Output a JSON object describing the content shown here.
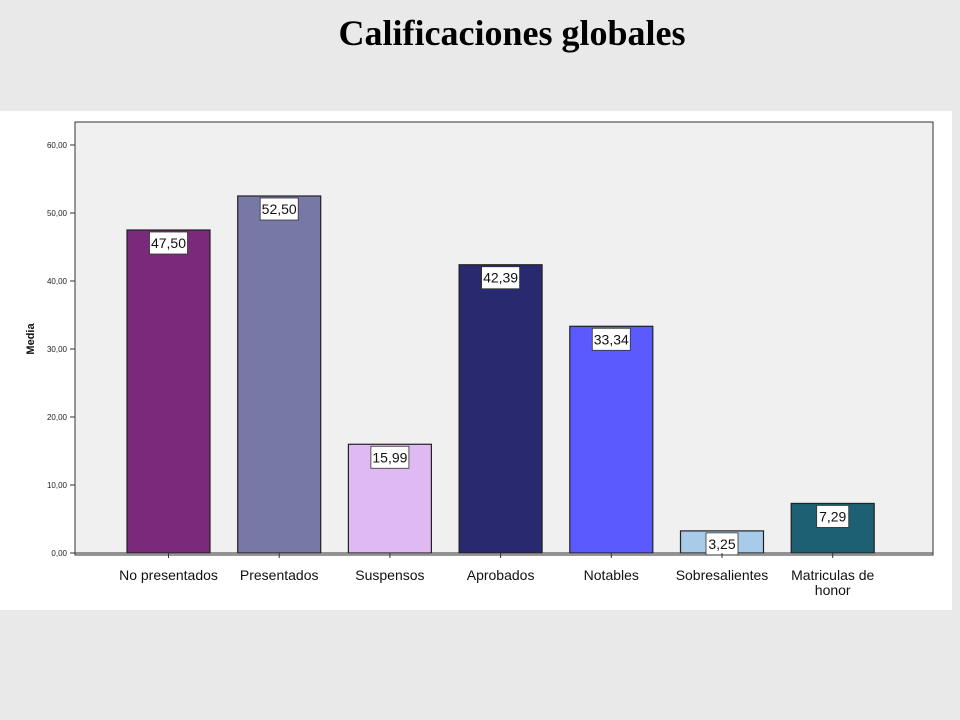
{
  "chart_data": {
    "type": "bar",
    "title": "Calificaciones globales",
    "ylabel": "Media",
    "xlabel": "",
    "ylim": [
      0,
      60
    ],
    "yticks": [
      "0,00",
      "10,00",
      "20,00",
      "30,00",
      "40,00",
      "50,00",
      "60,00"
    ],
    "ytick_values": [
      0,
      10,
      20,
      30,
      40,
      50,
      60
    ],
    "categories": [
      "No presentados",
      "Presentados",
      "Suspensos",
      "Aprobados",
      "Notables",
      "Sobresalientes",
      "Matriculas de honor"
    ],
    "values": [
      47.5,
      52.5,
      15.99,
      42.39,
      33.34,
      3.25,
      7.29
    ],
    "value_labels": [
      "47,50",
      "52,50",
      "15,99",
      "42,39",
      "33,34",
      "3,25",
      "7,29"
    ],
    "colors": [
      "#7b2a7b",
      "#7878a6",
      "#dfb9f1",
      "#29296f",
      "#5a5aff",
      "#a9cbea",
      "#1d5f73"
    ],
    "grid": false,
    "legend": "none"
  }
}
